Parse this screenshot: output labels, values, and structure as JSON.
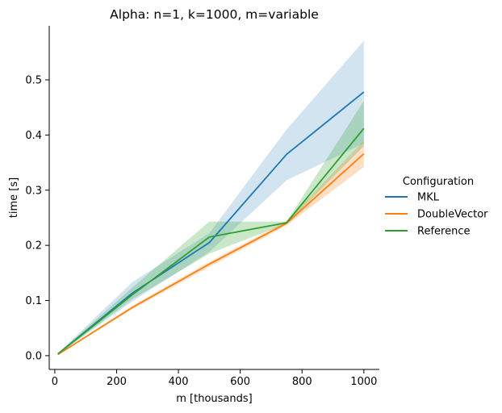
{
  "chart_data": {
    "type": "line",
    "title": "Alpha: n=1, k=1000, m=variable",
    "xlabel": "m [thousands]",
    "ylabel": "time [s]",
    "xlim": [
      -18,
      1050
    ],
    "ylim": [
      -0.025,
      0.598
    ],
    "xticks": [
      0,
      200,
      400,
      600,
      800,
      1000
    ],
    "yticks": [
      0.0,
      0.1,
      0.2,
      0.3,
      0.4,
      0.5
    ],
    "ytick_labels": [
      "0.0",
      "0.1",
      "0.2",
      "0.3",
      "0.4",
      "0.5"
    ],
    "grid": false,
    "legend": {
      "title": "Configuration",
      "placement": "right"
    },
    "series": [
      {
        "name": "MKL",
        "color": "#1f77b4",
        "x": [
          10,
          250,
          500,
          750,
          1000
        ],
        "y": [
          0.003,
          0.113,
          0.205,
          0.365,
          0.478
        ],
        "ci_low": [
          0.002,
          0.098,
          0.188,
          0.318,
          0.385
        ],
        "ci_high": [
          0.004,
          0.133,
          0.222,
          0.41,
          0.571
        ]
      },
      {
        "name": "DoubleVector",
        "color": "#ff7f0e",
        "x": [
          10,
          250,
          500,
          750,
          1000
        ],
        "y": [
          0.002,
          0.087,
          0.166,
          0.24,
          0.366
        ],
        "ci_low": [
          0.002,
          0.084,
          0.161,
          0.236,
          0.342
        ],
        "ci_high": [
          0.003,
          0.09,
          0.17,
          0.244,
          0.39
        ]
      },
      {
        "name": "Reference",
        "color": "#2ca02c",
        "x": [
          10,
          250,
          500,
          750,
          1000
        ],
        "y": [
          0.003,
          0.11,
          0.215,
          0.241,
          0.412
        ],
        "ci_low": [
          0.002,
          0.102,
          0.185,
          0.239,
          0.38
        ],
        "ci_high": [
          0.004,
          0.123,
          0.243,
          0.243,
          0.462
        ]
      }
    ]
  }
}
